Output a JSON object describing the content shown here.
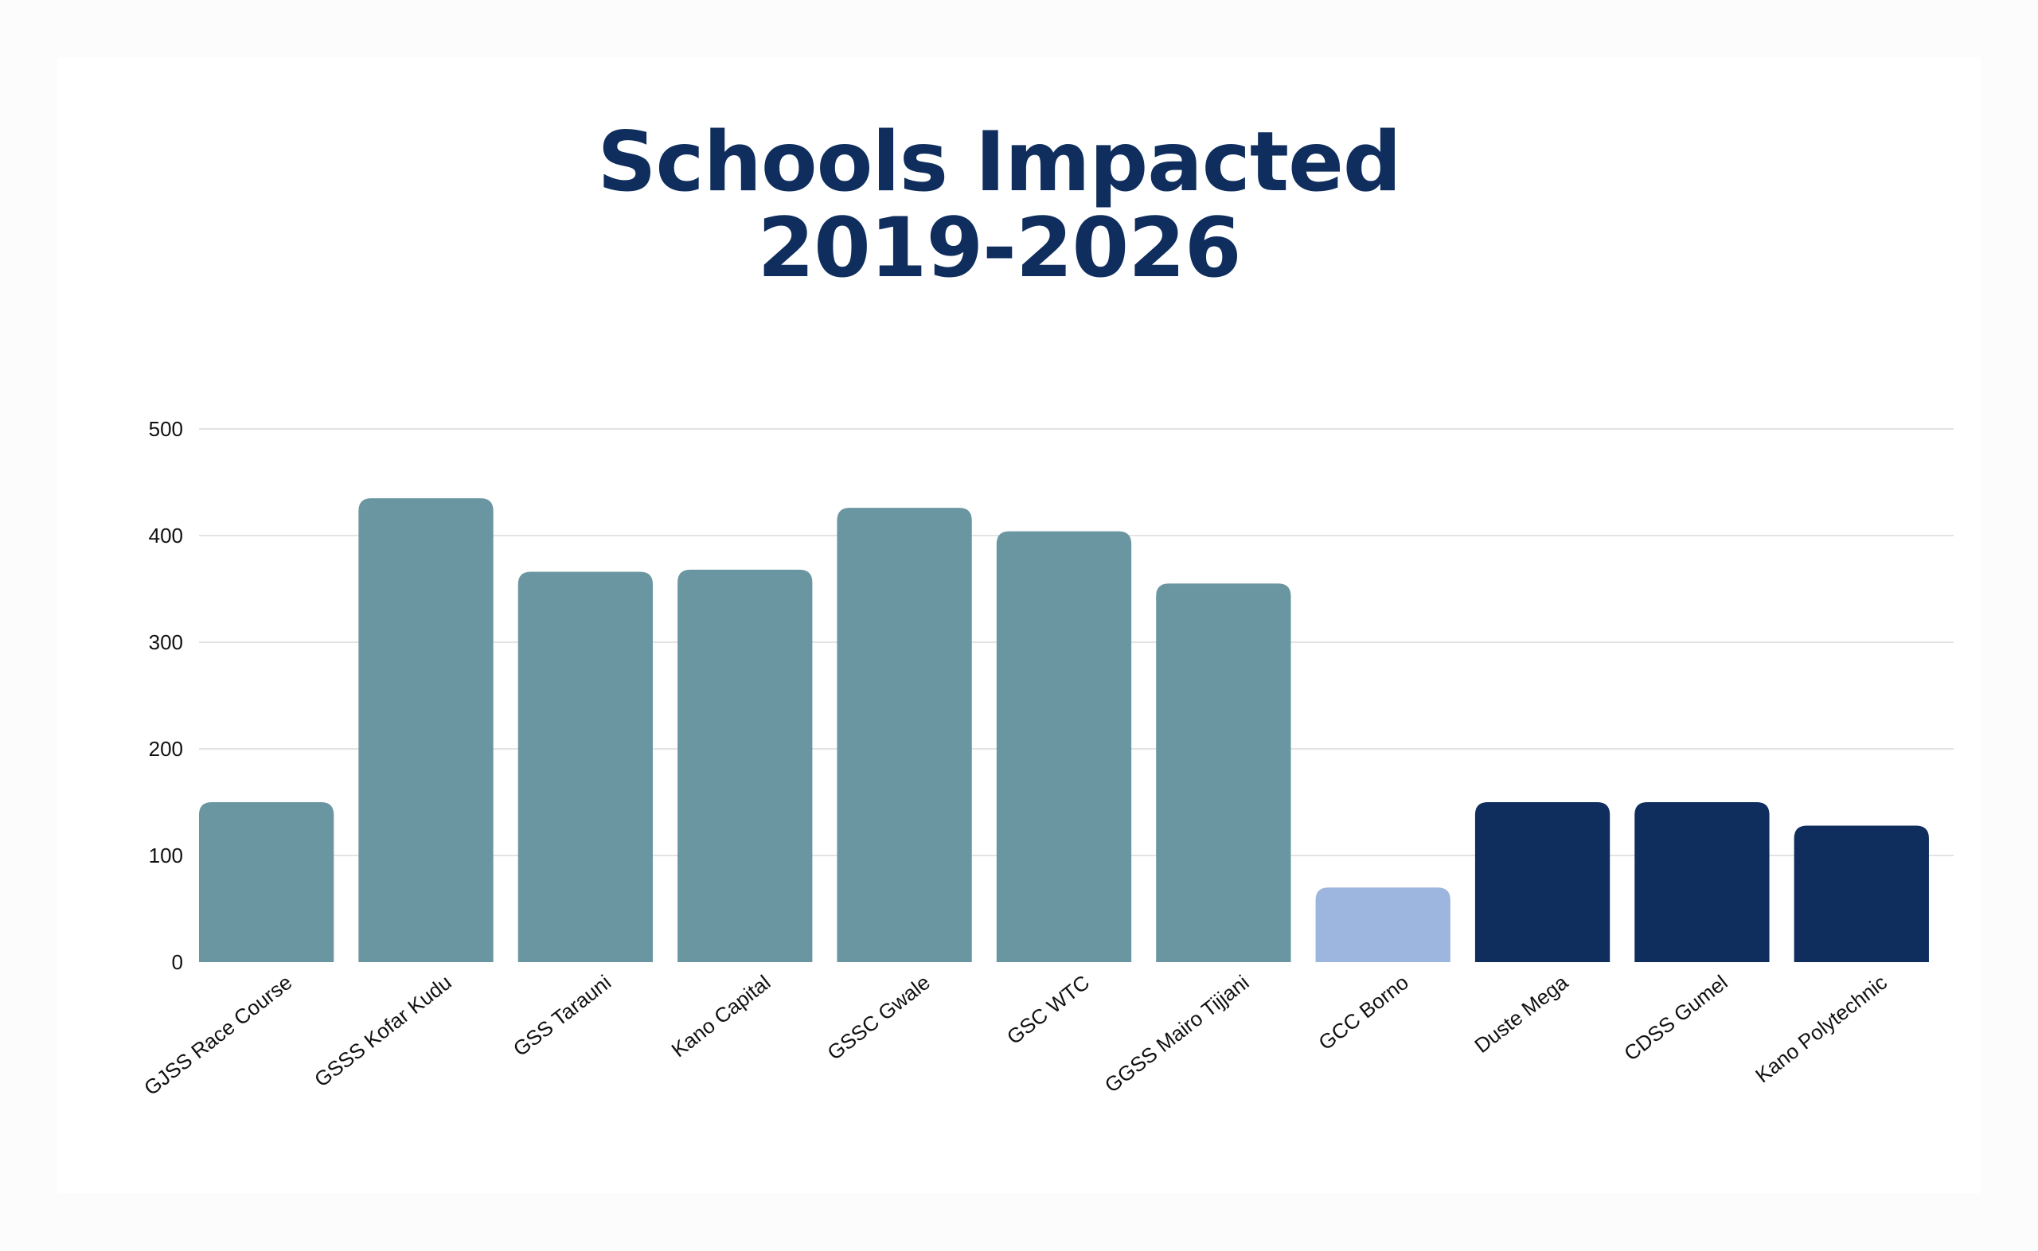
{
  "chart_data": {
    "type": "bar",
    "title_line1": "Schools Impacted",
    "title_line2": "2019-2026",
    "xlabel": "",
    "ylabel": "",
    "ylim": [
      0,
      500
    ],
    "yticks": [
      0,
      100,
      200,
      300,
      400,
      500
    ],
    "grid": true,
    "categories": [
      "GJSS Race Course",
      "GSSS Kofar Kudu",
      "GSS Tarauni",
      "Kano Capital",
      "GSSC Gwale",
      "GSC WTC",
      "GGSS Mairo Tijjani",
      "GCC Borno",
      "Duste Mega",
      "CDSS Gumel",
      "Kano Polytechnic"
    ],
    "values": [
      150,
      435,
      366,
      368,
      426,
      404,
      355,
      70,
      150,
      150,
      128
    ],
    "bar_colors": [
      "#6a96a1",
      "#6a96a1",
      "#6a96a1",
      "#6a96a1",
      "#6a96a1",
      "#6a96a1",
      "#6a96a1",
      "#9db6df",
      "#0f2e5e",
      "#0f2e5e",
      "#0f2e5e"
    ],
    "grid_color": "#e3e3e3"
  }
}
